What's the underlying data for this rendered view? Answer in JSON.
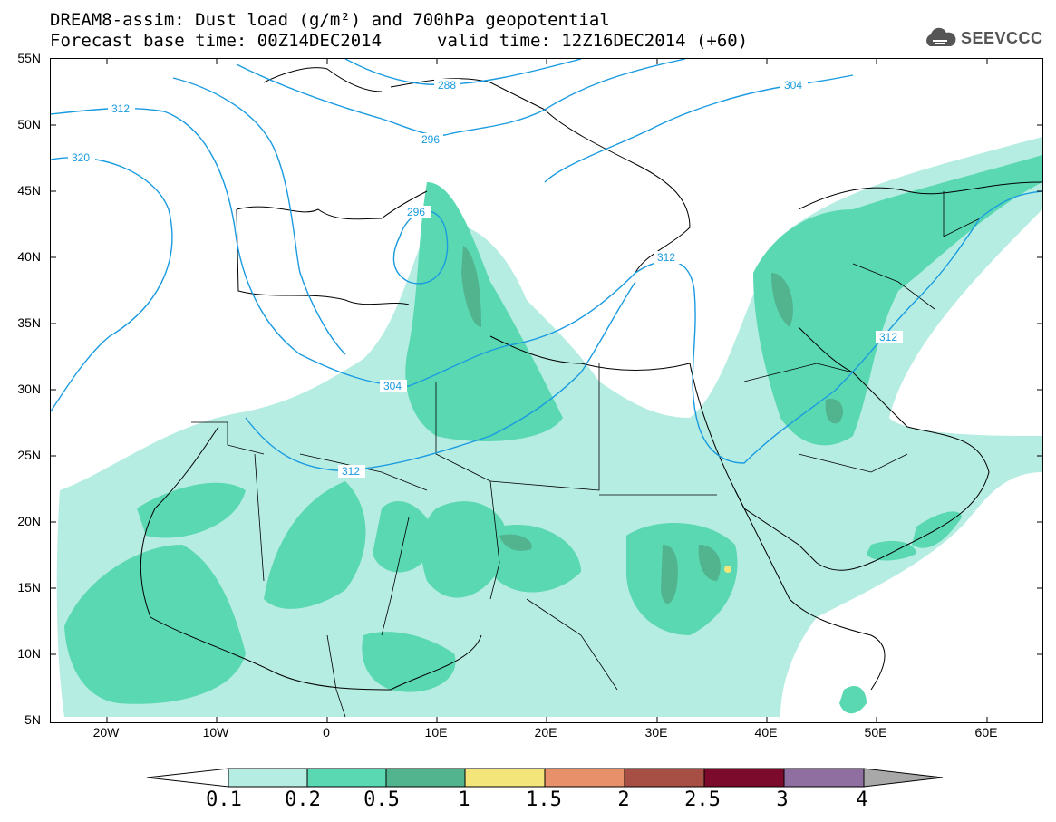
{
  "header": {
    "line1": "DREAM8-assim: Dust load (g/m²) and 700hPa geopotential",
    "line2": "Forecast base time: 00Z14DEC2014",
    "valid": "valid time: 12Z16DEC2014 (+60)"
  },
  "logo": {
    "text": "SEEVCCC",
    "icon": "cloud-logo-icon",
    "color": "#555555"
  },
  "map": {
    "lon_range": [
      -25,
      65
    ],
    "lat_range": [
      5,
      55
    ],
    "lat_ticks": [
      "55N",
      "50N",
      "45N",
      "40N",
      "35N",
      "30N",
      "25N",
      "20N",
      "15N",
      "10N",
      "5N"
    ],
    "lon_ticks": [
      "20W",
      "10W",
      "0",
      "10E",
      "20E",
      "30E",
      "40E",
      "50E",
      "60E"
    ],
    "contour_labels": [
      "288",
      "296",
      "304",
      "312",
      "320",
      "296",
      "304",
      "312",
      "312",
      "312"
    ],
    "contour_color": "#1a9be0"
  },
  "colorbar": {
    "labels": [
      "0.1",
      "0.2",
      "0.5",
      "1",
      "1.5",
      "2",
      "2.5",
      "3",
      "4"
    ],
    "colors": [
      "#ffffff",
      "#b6ede2",
      "#5ad8b1",
      "#52b38f",
      "#f4e57a",
      "#e8906a",
      "#a84f45",
      "#7b0a2c",
      "#8e6f9f",
      "#a8a8a8"
    ]
  }
}
